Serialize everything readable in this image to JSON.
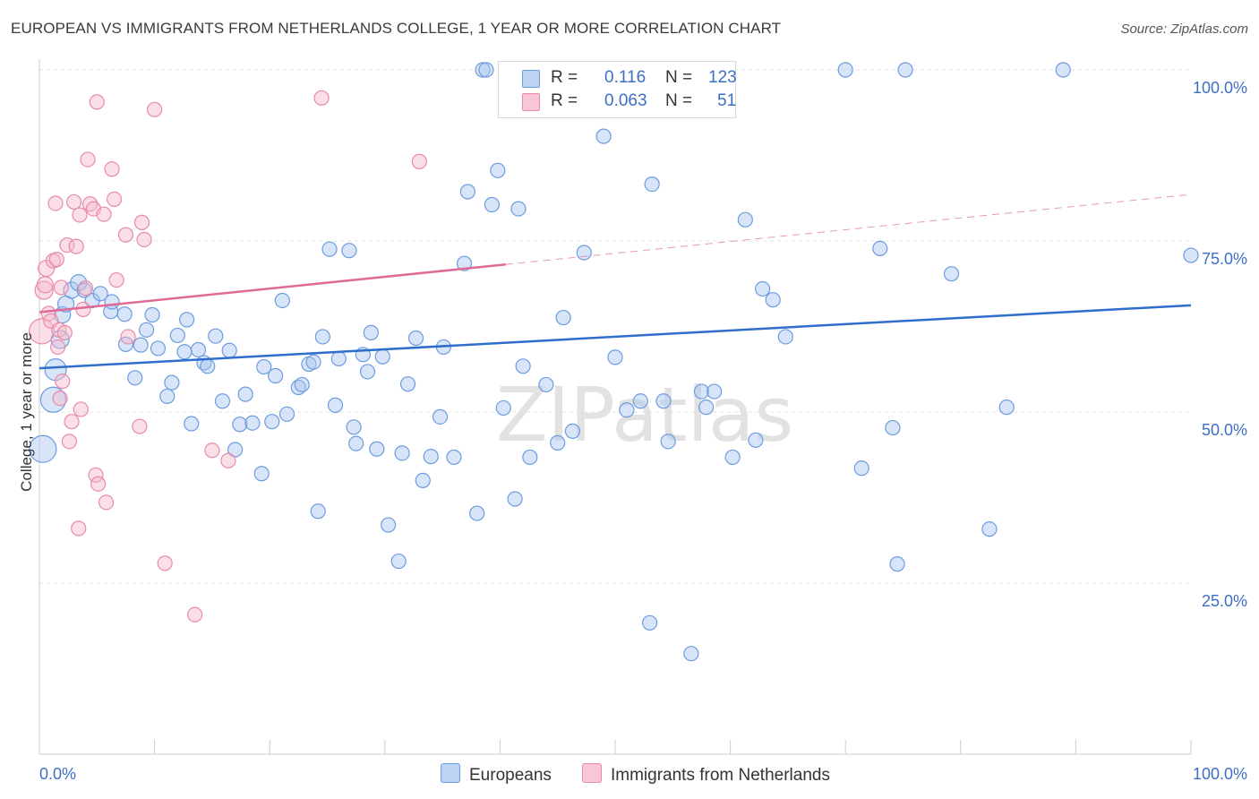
{
  "title": "EUROPEAN VS IMMIGRANTS FROM NETHERLANDS COLLEGE, 1 YEAR OR MORE CORRELATION CHART",
  "source": "Source: ZipAtlas.com",
  "watermark": "ZIPatlas",
  "colors": {
    "blue_fill": "#a9c6ef",
    "blue_stroke": "#6d9be0",
    "blue_line": "#2f6fcb",
    "pink_fill": "#f5b7c9",
    "pink_stroke": "#e98aa8",
    "pink_line": "#e06a96",
    "axis_text": "#3d6fc4",
    "grid": "#e4e4e4"
  },
  "legend": {
    "r_label": "R =",
    "n_label": "N =",
    "series": [
      {
        "r": "0.116",
        "n": "123"
      },
      {
        "r": "0.063",
        "n": "51"
      }
    ]
  },
  "chart_data": {
    "type": "scatter",
    "xlabel": "",
    "ylabel": "College, 1 year or more",
    "xlim": [
      0,
      100
    ],
    "ylim": [
      0,
      100
    ],
    "x_tick_labels": [
      "0.0%",
      "100.0%"
    ],
    "y_ticks": [
      25,
      50,
      75,
      100
    ],
    "y_tick_labels": [
      "25.0%",
      "50.0%",
      "75.0%",
      "100.0%"
    ],
    "grid": true,
    "legend_position": "bottom",
    "series": [
      {
        "name": "Europeans",
        "color": "#6d9be0",
        "trend": {
          "x": [
            0,
            100
          ],
          "y": [
            56.4,
            65.6
          ],
          "dashed_from": null
        },
        "points": [
          [
            0.3,
            44.6,
            15
          ],
          [
            1.2,
            51.8,
            14
          ],
          [
            1.4,
            56.2,
            12
          ],
          [
            1.8,
            60.6,
            10
          ],
          [
            2.0,
            64.2,
            9
          ],
          [
            2.3,
            65.8,
            9
          ],
          [
            2.8,
            67.8,
            9
          ],
          [
            3.4,
            68.9,
            9
          ],
          [
            3.9,
            67.8,
            8
          ],
          [
            4.6,
            66.3,
            8
          ],
          [
            5.3,
            67.3,
            8
          ],
          [
            6.2,
            64.7,
            8
          ],
          [
            7.4,
            64.3,
            8
          ],
          [
            6.3,
            66.1,
            8
          ],
          [
            7.5,
            59.9,
            8
          ],
          [
            8.3,
            55.0,
            8
          ],
          [
            8.8,
            59.8,
            8
          ],
          [
            9.3,
            62.0,
            8
          ],
          [
            9.8,
            64.2,
            8
          ],
          [
            10.3,
            59.3,
            8
          ],
          [
            11.1,
            52.3,
            8
          ],
          [
            11.5,
            54.3,
            8
          ],
          [
            12.0,
            61.2,
            8
          ],
          [
            12.6,
            58.8,
            8
          ],
          [
            12.8,
            63.5,
            8
          ],
          [
            13.2,
            48.3,
            8
          ],
          [
            13.8,
            59.1,
            8
          ],
          [
            14.3,
            57.2,
            8
          ],
          [
            14.6,
            56.7,
            8
          ],
          [
            15.3,
            61.1,
            8
          ],
          [
            15.9,
            51.6,
            8
          ],
          [
            16.5,
            59.0,
            8
          ],
          [
            17.0,
            44.5,
            8
          ],
          [
            17.4,
            48.2,
            8
          ],
          [
            17.9,
            52.6,
            8
          ],
          [
            18.5,
            48.4,
            8
          ],
          [
            19.3,
            41.0,
            8
          ],
          [
            19.5,
            56.6,
            8
          ],
          [
            20.2,
            48.6,
            8
          ],
          [
            20.5,
            55.3,
            8
          ],
          [
            21.1,
            66.3,
            8
          ],
          [
            21.5,
            49.7,
            8
          ],
          [
            22.5,
            53.6,
            8
          ],
          [
            22.8,
            54.0,
            8
          ],
          [
            23.4,
            57.0,
            8
          ],
          [
            23.8,
            57.3,
            8
          ],
          [
            24.2,
            35.5,
            8
          ],
          [
            24.6,
            61.0,
            8
          ],
          [
            25.2,
            73.8,
            8
          ],
          [
            25.7,
            51.0,
            8
          ],
          [
            26.0,
            57.8,
            8
          ],
          [
            26.9,
            73.6,
            8
          ],
          [
            27.3,
            47.8,
            8
          ],
          [
            27.5,
            45.4,
            8
          ],
          [
            28.1,
            58.4,
            8
          ],
          [
            28.8,
            61.6,
            8
          ],
          [
            28.5,
            55.9,
            8
          ],
          [
            29.3,
            44.6,
            8
          ],
          [
            29.8,
            58.1,
            8
          ],
          [
            30.3,
            33.5,
            8
          ],
          [
            31.2,
            28.2,
            8
          ],
          [
            31.5,
            44.0,
            8
          ],
          [
            32.0,
            54.1,
            8
          ],
          [
            32.7,
            60.8,
            8
          ],
          [
            33.3,
            40.0,
            8
          ],
          [
            34.0,
            43.5,
            8
          ],
          [
            34.8,
            49.3,
            8
          ],
          [
            35.1,
            59.5,
            8
          ],
          [
            36.0,
            43.4,
            8
          ],
          [
            36.9,
            71.7,
            8
          ],
          [
            37.2,
            82.2,
            8
          ],
          [
            38.0,
            35.2,
            8
          ],
          [
            38.5,
            100.0,
            8
          ],
          [
            38.8,
            100.0,
            8
          ],
          [
            39.3,
            80.3,
            8
          ],
          [
            39.8,
            85.3,
            8
          ],
          [
            40.3,
            50.6,
            8
          ],
          [
            41.3,
            37.3,
            8
          ],
          [
            41.6,
            79.7,
            8
          ],
          [
            42.0,
            56.7,
            8
          ],
          [
            42.6,
            43.4,
            8
          ],
          [
            44.0,
            54.0,
            8
          ],
          [
            45.0,
            45.5,
            8
          ],
          [
            45.5,
            63.8,
            8
          ],
          [
            46.3,
            47.2,
            8
          ],
          [
            47.3,
            73.3,
            8
          ],
          [
            49.0,
            90.3,
            8
          ],
          [
            50.0,
            58.0,
            8
          ],
          [
            51.0,
            50.3,
            8
          ],
          [
            52.2,
            51.6,
            8
          ],
          [
            53.0,
            19.2,
            8
          ],
          [
            53.2,
            83.3,
            8
          ],
          [
            54.2,
            51.6,
            8
          ],
          [
            54.6,
            45.7,
            8
          ],
          [
            55.5,
            96.0,
            8
          ],
          [
            56.6,
            14.7,
            8
          ],
          [
            57.5,
            53.0,
            8
          ],
          [
            57.9,
            50.7,
            8
          ],
          [
            58.6,
            53.0,
            8
          ],
          [
            60.2,
            43.4,
            8
          ],
          [
            61.3,
            78.1,
            8
          ],
          [
            62.2,
            45.9,
            8
          ],
          [
            62.8,
            68.0,
            8
          ],
          [
            63.7,
            66.4,
            8
          ],
          [
            64.8,
            61.0,
            8
          ],
          [
            70.0,
            100.0,
            8
          ],
          [
            71.4,
            41.8,
            8
          ],
          [
            73.0,
            73.9,
            8
          ],
          [
            74.1,
            47.7,
            8
          ],
          [
            74.5,
            27.8,
            8
          ],
          [
            75.2,
            100.0,
            8
          ],
          [
            79.2,
            70.2,
            8
          ],
          [
            82.5,
            32.9,
            8
          ],
          [
            84.0,
            50.7,
            8
          ],
          [
            88.9,
            100.0,
            8
          ],
          [
            100.0,
            72.9,
            8
          ]
        ]
      },
      {
        "name": "Immigrants from Netherlands",
        "color": "#e98aa8",
        "trend": {
          "x": [
            0,
            100
          ],
          "y": [
            64.6,
            81.8
          ],
          "dashed_from": 40.5
        },
        "points": [
          [
            0.2,
            61.8,
            14
          ],
          [
            0.4,
            67.8,
            10
          ],
          [
            0.5,
            68.6,
            9
          ],
          [
            0.6,
            71.0,
            9
          ],
          [
            0.8,
            64.4,
            8
          ],
          [
            1.0,
            63.3,
            8
          ],
          [
            1.2,
            72.1,
            8
          ],
          [
            1.4,
            80.5,
            8
          ],
          [
            1.5,
            72.3,
            8
          ],
          [
            1.6,
            59.5,
            8
          ],
          [
            1.7,
            62.0,
            8
          ],
          [
            1.8,
            52.0,
            8
          ],
          [
            1.9,
            68.2,
            8
          ],
          [
            2.0,
            54.5,
            8
          ],
          [
            2.2,
            61.6,
            8
          ],
          [
            2.4,
            74.4,
            8
          ],
          [
            2.6,
            45.7,
            8
          ],
          [
            2.8,
            48.6,
            8
          ],
          [
            3.0,
            80.7,
            8
          ],
          [
            3.2,
            74.2,
            8
          ],
          [
            3.4,
            33.0,
            8
          ],
          [
            3.5,
            78.8,
            8
          ],
          [
            3.6,
            50.4,
            8
          ],
          [
            3.8,
            65.0,
            8
          ],
          [
            4.0,
            68.1,
            8
          ],
          [
            4.2,
            86.9,
            8
          ],
          [
            4.4,
            80.4,
            8
          ],
          [
            4.7,
            79.7,
            8
          ],
          [
            4.9,
            40.8,
            8
          ],
          [
            5.0,
            95.3,
            8
          ],
          [
            5.1,
            39.5,
            8
          ],
          [
            5.6,
            78.9,
            8
          ],
          [
            5.8,
            36.8,
            8
          ],
          [
            6.3,
            85.5,
            8
          ],
          [
            6.5,
            81.1,
            8
          ],
          [
            6.7,
            69.3,
            8
          ],
          [
            7.5,
            75.9,
            8
          ],
          [
            7.7,
            61.0,
            8
          ],
          [
            8.7,
            47.9,
            8
          ],
          [
            8.9,
            77.7,
            8
          ],
          [
            9.1,
            75.2,
            8
          ],
          [
            10.0,
            94.2,
            8
          ],
          [
            10.9,
            27.9,
            8
          ],
          [
            13.5,
            20.4,
            8
          ],
          [
            15.0,
            44.4,
            8
          ],
          [
            16.4,
            42.9,
            8
          ],
          [
            24.5,
            95.9,
            8
          ],
          [
            33.0,
            86.6,
            8
          ]
        ]
      }
    ]
  },
  "bottom_legend": [
    "Europeans",
    "Immigrants from Netherlands"
  ]
}
